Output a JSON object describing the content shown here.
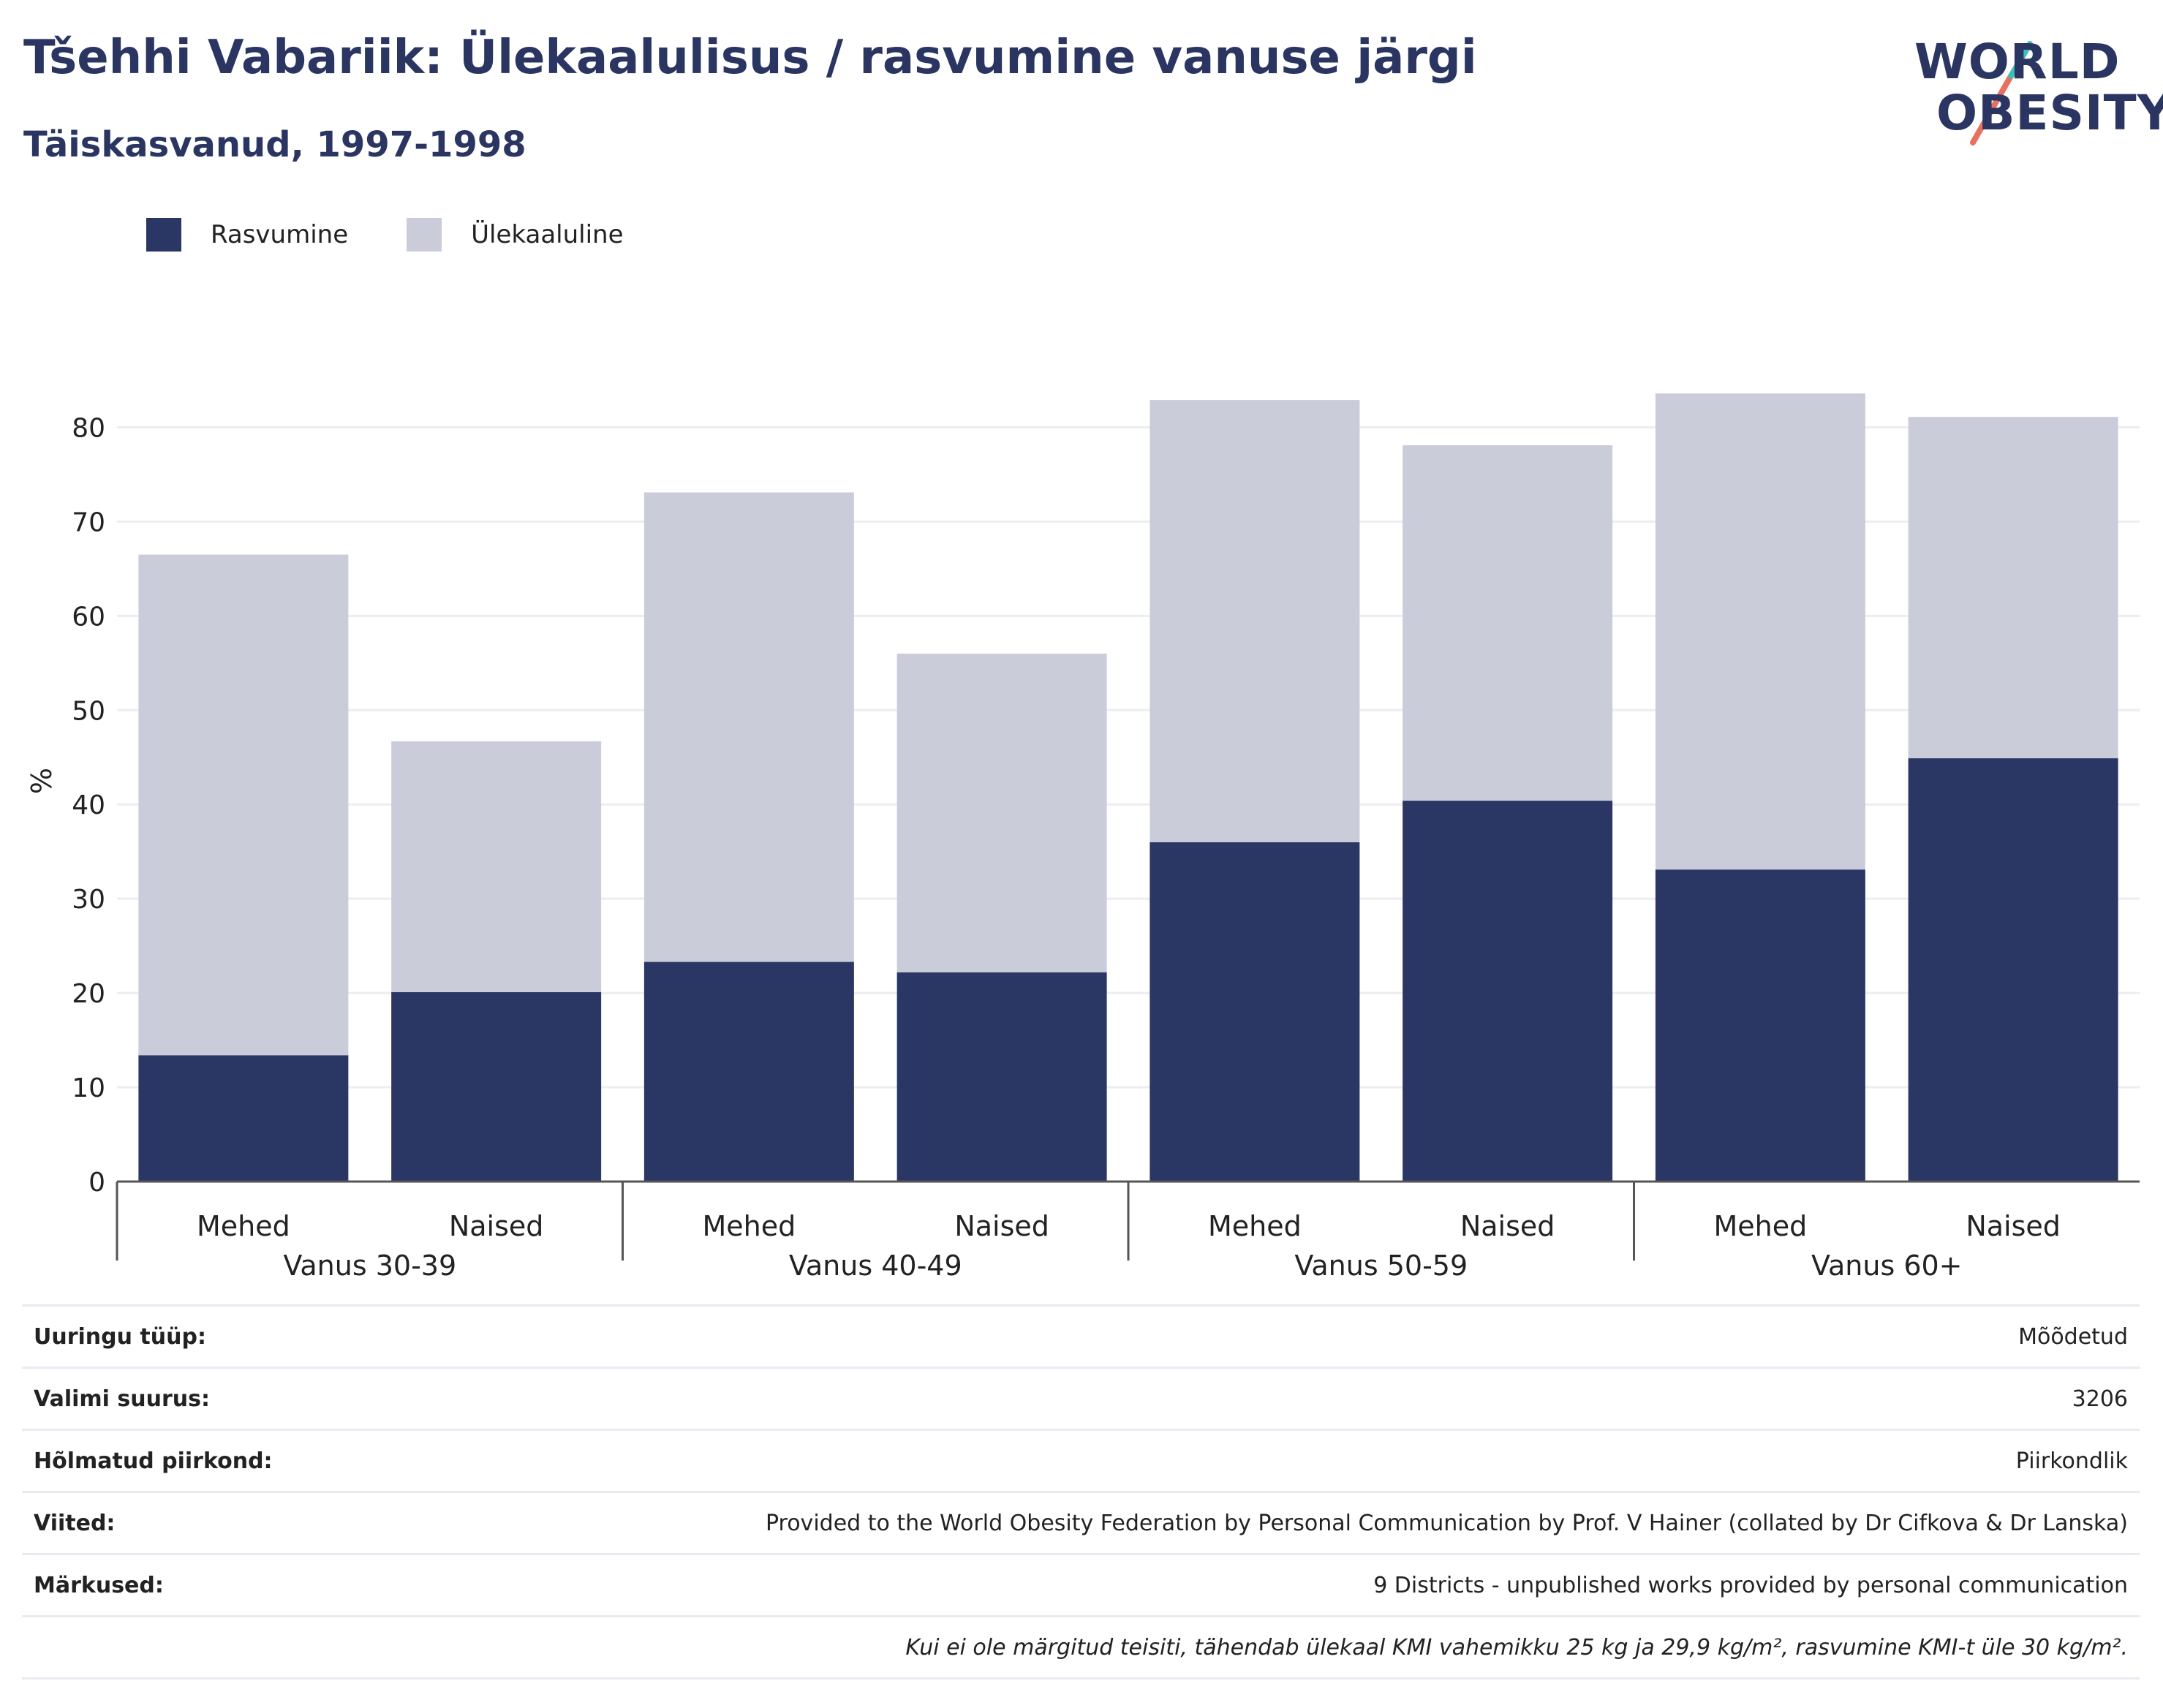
{
  "title": "Tšehhi Vabariik: Ülekaalulisus / rasvumine vanuse järgi",
  "subtitle": "Täiskasvanud, 1997-1998",
  "logo": {
    "line1": "WORLD",
    "line2": "OBESITY"
  },
  "legend": [
    {
      "label": "Rasvumine",
      "color": "#2a3663"
    },
    {
      "label": "Ülekaaluline",
      "color": "#cacdd9"
    }
  ],
  "chart_data": {
    "type": "bar",
    "stacked": true,
    "ylabel": "%",
    "ylim": [
      0,
      85
    ],
    "yticks": [
      0,
      10,
      20,
      30,
      40,
      50,
      60,
      70,
      80
    ],
    "grid": true,
    "legend_position": "top-left",
    "groups": [
      "Vanus 30-39",
      "Vanus 40-49",
      "Vanus 50-59",
      "Vanus 60+"
    ],
    "categories": [
      "Mehed",
      "Naised",
      "Mehed",
      "Naised",
      "Mehed",
      "Naised",
      "Mehed",
      "Naised"
    ],
    "series": [
      {
        "name": "Rasvumine",
        "color": "#2a3663",
        "values": [
          13.4,
          20.1,
          23.3,
          22.2,
          36.0,
          40.4,
          33.1,
          44.9
        ]
      },
      {
        "name": "Ülekaaluline",
        "color": "#cacdd9",
        "values": [
          53.1,
          26.6,
          49.8,
          33.8,
          46.9,
          37.7,
          50.5,
          36.2
        ]
      }
    ]
  },
  "info": [
    {
      "label": "Uuringu tüüp:",
      "value": "Mõõdetud"
    },
    {
      "label": "Valimi suurus:",
      "value": "3206"
    },
    {
      "label": "Hõlmatud piirkond:",
      "value": "Piirkondlik"
    },
    {
      "label": "Viited:",
      "value": "Provided to the World Obesity Federation by Personal Communication by Prof. V Hainer (collated by Dr Cifkova & Dr Lanska)"
    },
    {
      "label": "Märkused:",
      "value": "9 Districts - unpublished works provided by personal communication"
    },
    {
      "label": "",
      "value": "Kui ei ole märgitud teisiti, tähendab ülekaal KMI vahemikku 25 kg ja 29,9 kg/m², rasvumine KMI-t üle 30 kg/m²."
    }
  ]
}
